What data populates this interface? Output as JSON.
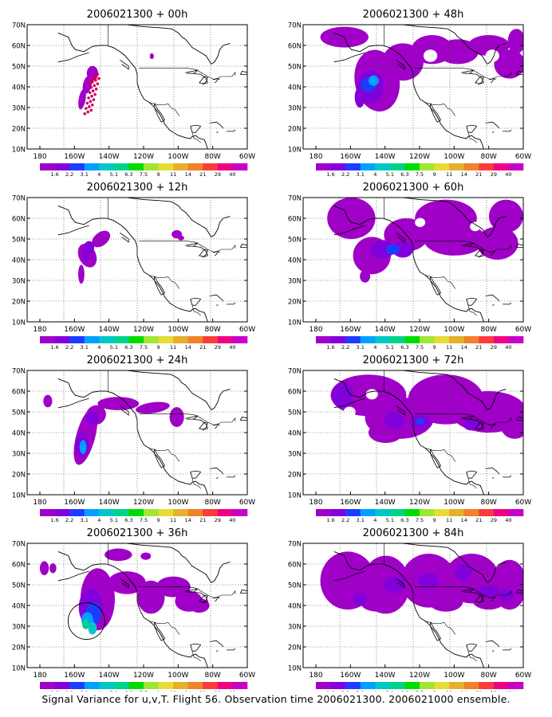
{
  "figure": {
    "caption": "Signal Variance for u,v,T. Flight 56. Observation time 2006021300. 2006021000 ensemble."
  },
  "lon_ticks": [
    "180",
    "160W",
    "140W",
    "120W",
    "100W",
    "80W",
    "60W"
  ],
  "lat_ticks": [
    "10N",
    "20N",
    "30N",
    "40N",
    "50N",
    "60N",
    "70N"
  ],
  "colorbar": {
    "levels": [
      "1.6",
      "2.2",
      "3.1",
      "4",
      "5.1",
      "6.3",
      "7.5",
      "9",
      "11",
      "14",
      "21",
      "29",
      "40"
    ],
    "colors": [
      "#a000c8",
      "#8200dc",
      "#1e3cff",
      "#00a0ff",
      "#00c8c8",
      "#00d28c",
      "#00dc00",
      "#a0e632",
      "#e6dc32",
      "#e6af2d",
      "#f08228",
      "#fa3c3c",
      "#f00082",
      "#c800c8"
    ]
  },
  "chart_data": {
    "type": "heatmap",
    "xlim": [
      "180",
      "60W"
    ],
    "ylim": [
      "10N",
      "70N"
    ],
    "grid": true,
    "panels": [
      {
        "title": "2006021300 + 00h",
        "column": "left",
        "row": 1
      },
      {
        "title": "2006021300 + 12h",
        "column": "left",
        "row": 2
      },
      {
        "title": "2006021300 + 24h",
        "column": "left",
        "row": 3
      },
      {
        "title": "2006021300 + 36h",
        "column": "left",
        "row": 4
      },
      {
        "title": "2006021300 + 48h",
        "column": "right",
        "row": 1
      },
      {
        "title": "2006021300 + 60h",
        "column": "right",
        "row": 2
      },
      {
        "title": "2006021300 + 72h",
        "column": "right",
        "row": 3
      },
      {
        "title": "2006021300 + 84h",
        "column": "right",
        "row": 4
      }
    ]
  }
}
